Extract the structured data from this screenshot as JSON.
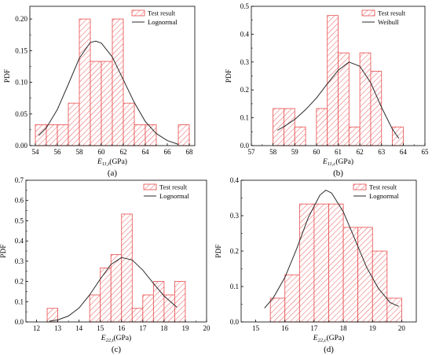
{
  "colors": {
    "bar_edge": "#e84a4a",
    "hatch": "#e84a4a",
    "curve": "#2b2b2b",
    "axis": "#000000"
  },
  "chart_data": [
    {
      "id": "a",
      "panel_label": "(a)",
      "type": "bar",
      "histogram": true,
      "xlabel_main": "E",
      "xlabel_sub": "11,t",
      "xlabel_unit": "(GPa)",
      "ylabel": "PDF",
      "xlim": [
        53.5,
        68.5
      ],
      "ylim": [
        0,
        0.22
      ],
      "xticks": [
        54,
        56,
        58,
        60,
        62,
        64,
        66,
        68
      ],
      "yticks": [
        0.0,
        0.05,
        0.1,
        0.15,
        0.2
      ],
      "ytick_labels": [
        "0.00",
        "0.05",
        "0.10",
        "0.15",
        "0.20"
      ],
      "legend_position": "top-right",
      "series": [
        {
          "name": "Test result",
          "kind": "histogram",
          "bin_width": 1,
          "bins": [
            54,
            55,
            56,
            57,
            58,
            59,
            60,
            61,
            62,
            63,
            64,
            67
          ],
          "values": [
            0.033,
            0.033,
            0.033,
            0.067,
            0.2,
            0.133,
            0.133,
            0.2,
            0.067,
            0.033,
            0.033,
            0.033
          ]
        },
        {
          "name": "Lognormal",
          "kind": "curve",
          "x": [
            54.3,
            55,
            56,
            57,
            58,
            59,
            59.5,
            60,
            61,
            62,
            63,
            64,
            65,
            66,
            67
          ],
          "y": [
            0.016,
            0.028,
            0.057,
            0.097,
            0.138,
            0.163,
            0.165,
            0.162,
            0.14,
            0.104,
            0.068,
            0.038,
            0.019,
            0.008,
            0.002
          ]
        }
      ]
    },
    {
      "id": "b",
      "panel_label": "(b)",
      "type": "bar",
      "histogram": true,
      "xlabel_main": "E",
      "xlabel_sub": "11,c",
      "xlabel_unit": "(GPa)",
      "ylabel": "PDF",
      "xlim": [
        57,
        65
      ],
      "ylim": [
        0,
        0.5
      ],
      "xticks": [
        57,
        58,
        59,
        60,
        61,
        62,
        63,
        64,
        65
      ],
      "yticks": [
        0.0,
        0.1,
        0.2,
        0.3,
        0.4,
        0.5
      ],
      "ytick_labels": [
        "0.0",
        "0.1",
        "0.2",
        "0.3",
        "0.4",
        "0.5"
      ],
      "legend_position": "top-right",
      "series": [
        {
          "name": "Test result",
          "kind": "histogram",
          "bin_width": 0.5,
          "bins": [
            58,
            58.5,
            59,
            60,
            60.5,
            61,
            61.5,
            62,
            62.5,
            63.5
          ],
          "values": [
            0.133,
            0.133,
            0.067,
            0.133,
            0.467,
            0.333,
            0.067,
            0.333,
            0.267,
            0.067
          ]
        },
        {
          "name": "Weibull",
          "kind": "curve",
          "x": [
            58.2,
            58.5,
            59,
            59.5,
            60,
            60.5,
            61,
            61.5,
            62,
            62.5,
            63,
            63.5,
            63.8
          ],
          "y": [
            0.055,
            0.068,
            0.094,
            0.129,
            0.171,
            0.222,
            0.27,
            0.3,
            0.285,
            0.226,
            0.137,
            0.059,
            0.026
          ]
        }
      ]
    },
    {
      "id": "c",
      "panel_label": "(c)",
      "type": "bar",
      "histogram": true,
      "xlabel_main": "E",
      "xlabel_sub": "22,t",
      "xlabel_unit": "(GPa)",
      "ylabel": "PDF",
      "xlim": [
        11.5,
        20
      ],
      "ylim": [
        0,
        0.7
      ],
      "xticks": [
        12,
        13,
        14,
        15,
        16,
        17,
        18,
        19,
        20
      ],
      "yticks": [
        0.0,
        0.1,
        0.2,
        0.3,
        0.4,
        0.5,
        0.6,
        0.7
      ],
      "ytick_labels": [
        "0.0",
        "0.1",
        "0.2",
        "0.3",
        "0.4",
        "0.5",
        "0.6",
        "0.7"
      ],
      "legend_position": "top-right",
      "series": [
        {
          "name": "Test result",
          "kind": "histogram",
          "bin_width": 0.5,
          "bins": [
            12.5,
            14.5,
            15,
            15.5,
            16,
            16.5,
            17,
            17.5,
            18,
            18.5
          ],
          "values": [
            0.067,
            0.133,
            0.267,
            0.333,
            0.533,
            0.067,
            0.133,
            0.2,
            0.133,
            0.2
          ]
        },
        {
          "name": "Lognormal",
          "kind": "curve",
          "x": [
            12.6,
            13,
            13.5,
            14,
            14.5,
            15,
            15.5,
            16,
            16.5,
            17,
            17.5,
            18,
            18.6
          ],
          "y": [
            0.004,
            0.01,
            0.029,
            0.069,
            0.134,
            0.212,
            0.284,
            0.318,
            0.306,
            0.256,
            0.19,
            0.128,
            0.073
          ]
        }
      ]
    },
    {
      "id": "d",
      "panel_label": "(d)",
      "type": "bar",
      "histogram": true,
      "xlabel_main": "E",
      "xlabel_sub": "22,c",
      "xlabel_unit": "(GPa)",
      "ylabel": "PDF",
      "xlim": [
        14.5,
        20.5
      ],
      "ylim": [
        0,
        0.4
      ],
      "xticks": [
        15,
        16,
        17,
        18,
        19,
        20
      ],
      "yticks": [
        0.0,
        0.1,
        0.2,
        0.3,
        0.4
      ],
      "ytick_labels": [
        "0.0",
        "0.1",
        "0.2",
        "0.3",
        "0.4"
      ],
      "legend_position": "top-right",
      "series": [
        {
          "name": "Test result",
          "kind": "histogram",
          "bin_width": 0.5,
          "bins": [
            15.5,
            16,
            16.5,
            17,
            17.5,
            18,
            18.5,
            19,
            19.5
          ],
          "values": [
            0.067,
            0.133,
            0.333,
            0.333,
            0.333,
            0.267,
            0.267,
            0.2,
            0.067
          ]
        },
        {
          "name": "Lognormal",
          "kind": "curve",
          "x": [
            15.3,
            15.6,
            16,
            16.4,
            16.8,
            17.2,
            17.4,
            17.6,
            18,
            18.4,
            18.8,
            19.2,
            19.6,
            19.9
          ],
          "y": [
            0.039,
            0.068,
            0.126,
            0.206,
            0.295,
            0.358,
            0.372,
            0.364,
            0.311,
            0.233,
            0.154,
            0.095,
            0.055,
            0.044
          ]
        }
      ]
    }
  ]
}
